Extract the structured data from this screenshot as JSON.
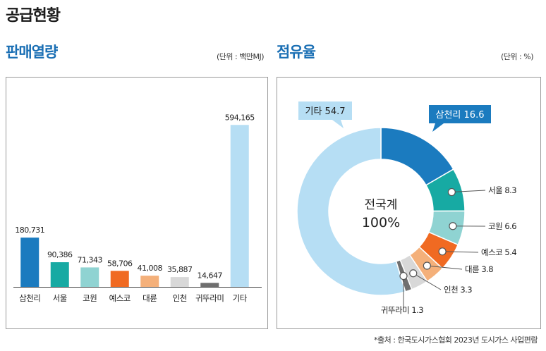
{
  "page": {
    "title": "공급현황"
  },
  "bar_section": {
    "title": "판매열량",
    "unit": "(단위 : 백만MJ)"
  },
  "donut_section": {
    "title": "점유율",
    "unit": "(단위 : %)",
    "center_label": "전국계",
    "center_value": "100%"
  },
  "source": "*출처 : 한국도시가스협회 2023년 도시가스 사업편람",
  "colors": {
    "삼천리": "#1b7bbf",
    "서울": "#17aaa3",
    "코원": "#8fd3d2",
    "예스코": "#f06a22",
    "대륜": "#f4b07a",
    "인천": "#d8d8d8",
    "귀뚜라미": "#6f6f6f",
    "기타": "#b6def4"
  },
  "chart_data": [
    {
      "type": "bar",
      "title": "판매열량",
      "unit": "(단위 : 백만MJ)",
      "categories": [
        "삼천리",
        "서울",
        "코원",
        "예스코",
        "대륜",
        "인천",
        "귀뚜라미",
        "기타"
      ],
      "values": [
        180731,
        90386,
        71343,
        58706,
        41008,
        35887,
        14647,
        594165
      ],
      "value_labels": [
        "180,731",
        "90,386",
        "71,343",
        "58,706",
        "41,008",
        "35,887",
        "14,647",
        "594,165"
      ],
      "ylim": [
        0,
        600000
      ],
      "grid": false
    },
    {
      "type": "pie",
      "title": "점유율",
      "unit": "(단위 : %)",
      "categories": [
        "삼천리",
        "서울",
        "코원",
        "예스코",
        "대륜",
        "인천",
        "귀뚜라미",
        "기타"
      ],
      "values": [
        16.6,
        8.3,
        6.6,
        5.4,
        3.8,
        3.3,
        1.3,
        54.7
      ],
      "value_labels": [
        "16.6",
        "8.3",
        "6.6",
        "5.4",
        "3.8",
        "3.3",
        "1.3",
        "54.7"
      ]
    }
  ]
}
